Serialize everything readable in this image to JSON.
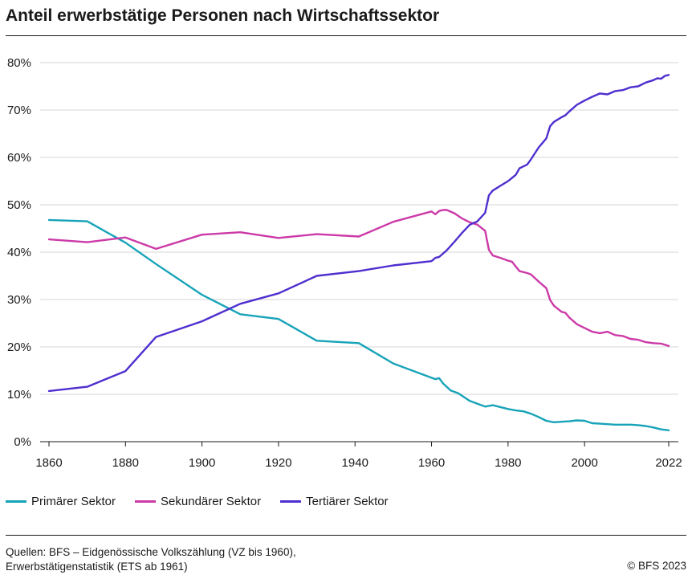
{
  "title": "Anteil erwerbstätige Personen nach Wirtschaftssektor",
  "source": {
    "line1": "Quellen: BFS – Eidgenössische Volkszählung (VZ bis 1960),",
    "line2": "Erwerbstätigenstatistik (ETS ab 1961)"
  },
  "copyright": "© BFS 2023",
  "chart_data": {
    "type": "line",
    "title": "Anteil erwerbstätige Personen nach Wirtschaftssektor",
    "xlabel": "",
    "ylabel": "",
    "xlim": [
      1860,
      2022
    ],
    "ylim": [
      0,
      80
    ],
    "x_ticks": [
      1860,
      1880,
      1900,
      1920,
      1940,
      1960,
      1980,
      2000,
      2022
    ],
    "y_ticks": [
      0,
      10,
      20,
      30,
      40,
      50,
      60,
      70,
      80
    ],
    "y_tick_labels": [
      "0%",
      "10%",
      "20%",
      "30%",
      "40%",
      "50%",
      "60%",
      "70%",
      "80%"
    ],
    "grid": "horizontal",
    "legend": "bottom",
    "series": [
      {
        "name": "Primärer Sektor",
        "color": "#17a3b8",
        "points": [
          [
            1860,
            46.8
          ],
          [
            1870,
            46.5
          ],
          [
            1880,
            42.0
          ],
          [
            1888,
            37.5
          ],
          [
            1900,
            31.0
          ],
          [
            1910,
            26.9
          ],
          [
            1920,
            25.9
          ],
          [
            1930,
            21.3
          ],
          [
            1941,
            20.8
          ],
          [
            1950,
            16.5
          ],
          [
            1960,
            13.5
          ],
          [
            1961,
            13.2
          ],
          [
            1962,
            13.4
          ],
          [
            1963,
            12.3
          ],
          [
            1965,
            10.8
          ],
          [
            1967,
            10.2
          ],
          [
            1970,
            8.6
          ],
          [
            1972,
            8.0
          ],
          [
            1974,
            7.4
          ],
          [
            1976,
            7.7
          ],
          [
            1978,
            7.3
          ],
          [
            1980,
            6.9
          ],
          [
            1982,
            6.6
          ],
          [
            1984,
            6.4
          ],
          [
            1986,
            5.9
          ],
          [
            1988,
            5.2
          ],
          [
            1990,
            4.4
          ],
          [
            1992,
            4.1
          ],
          [
            1994,
            4.2
          ],
          [
            1996,
            4.3
          ],
          [
            1998,
            4.5
          ],
          [
            2000,
            4.4
          ],
          [
            2002,
            3.9
          ],
          [
            2004,
            3.8
          ],
          [
            2006,
            3.7
          ],
          [
            2008,
            3.6
          ],
          [
            2010,
            3.6
          ],
          [
            2012,
            3.6
          ],
          [
            2014,
            3.5
          ],
          [
            2016,
            3.3
          ],
          [
            2018,
            3.0
          ],
          [
            2020,
            2.6
          ],
          [
            2022,
            2.4
          ]
        ]
      },
      {
        "name": "Sekundärer Sektor",
        "color": "#cc3aa8",
        "points": [
          [
            1860,
            42.7
          ],
          [
            1870,
            42.1
          ],
          [
            1880,
            43.1
          ],
          [
            1888,
            40.7
          ],
          [
            1900,
            43.7
          ],
          [
            1910,
            44.2
          ],
          [
            1920,
            43.0
          ],
          [
            1930,
            43.8
          ],
          [
            1941,
            43.3
          ],
          [
            1950,
            46.4
          ],
          [
            1960,
            48.6
          ],
          [
            1961,
            48.0
          ],
          [
            1962,
            48.7
          ],
          [
            1963,
            48.9
          ],
          [
            1964,
            48.9
          ],
          [
            1966,
            48.2
          ],
          [
            1968,
            47.1
          ],
          [
            1970,
            46.3
          ],
          [
            1972,
            45.8
          ],
          [
            1974,
            44.5
          ],
          [
            1975,
            40.5
          ],
          [
            1976,
            39.3
          ],
          [
            1978,
            38.8
          ],
          [
            1980,
            38.2
          ],
          [
            1981,
            38.0
          ],
          [
            1982,
            37.0
          ],
          [
            1983,
            36.0
          ],
          [
            1985,
            35.6
          ],
          [
            1986,
            35.3
          ],
          [
            1988,
            33.8
          ],
          [
            1990,
            32.4
          ],
          [
            1991,
            29.9
          ],
          [
            1992,
            28.7
          ],
          [
            1994,
            27.4
          ],
          [
            1995,
            27.2
          ],
          [
            1996,
            26.2
          ],
          [
            1998,
            24.8
          ],
          [
            2000,
            24.0
          ],
          [
            2002,
            23.2
          ],
          [
            2004,
            22.9
          ],
          [
            2006,
            23.2
          ],
          [
            2008,
            22.5
          ],
          [
            2010,
            22.3
          ],
          [
            2012,
            21.7
          ],
          [
            2014,
            21.5
          ],
          [
            2016,
            21.0
          ],
          [
            2018,
            20.8
          ],
          [
            2020,
            20.7
          ],
          [
            2022,
            20.2
          ]
        ]
      },
      {
        "name": "Tertiärer Sektor",
        "color": "#4f2fcf",
        "points": [
          [
            1860,
            10.7
          ],
          [
            1870,
            11.6
          ],
          [
            1880,
            14.9
          ],
          [
            1888,
            22.1
          ],
          [
            1900,
            25.4
          ],
          [
            1910,
            29.1
          ],
          [
            1920,
            31.3
          ],
          [
            1930,
            35.0
          ],
          [
            1941,
            36.0
          ],
          [
            1950,
            37.2
          ],
          [
            1960,
            38.1
          ],
          [
            1961,
            38.8
          ],
          [
            1962,
            39.0
          ],
          [
            1964,
            40.4
          ],
          [
            1966,
            42.2
          ],
          [
            1968,
            44.1
          ],
          [
            1970,
            45.8
          ],
          [
            1972,
            46.5
          ],
          [
            1974,
            48.3
          ],
          [
            1975,
            52.0
          ],
          [
            1976,
            53.0
          ],
          [
            1978,
            54.0
          ],
          [
            1980,
            55.0
          ],
          [
            1982,
            56.3
          ],
          [
            1983,
            57.7
          ],
          [
            1985,
            58.5
          ],
          [
            1986,
            59.6
          ],
          [
            1988,
            62.1
          ],
          [
            1990,
            64.0
          ],
          [
            1991,
            66.6
          ],
          [
            1992,
            67.5
          ],
          [
            1994,
            68.5
          ],
          [
            1995,
            68.9
          ],
          [
            1996,
            69.7
          ],
          [
            1998,
            71.1
          ],
          [
            2000,
            72.0
          ],
          [
            2002,
            72.8
          ],
          [
            2004,
            73.5
          ],
          [
            2006,
            73.3
          ],
          [
            2008,
            74.0
          ],
          [
            2010,
            74.2
          ],
          [
            2012,
            74.8
          ],
          [
            2014,
            75.0
          ],
          [
            2016,
            75.8
          ],
          [
            2018,
            76.3
          ],
          [
            2019,
            76.7
          ],
          [
            2020,
            76.6
          ],
          [
            2021,
            77.2
          ],
          [
            2022,
            77.4
          ]
        ]
      }
    ]
  }
}
